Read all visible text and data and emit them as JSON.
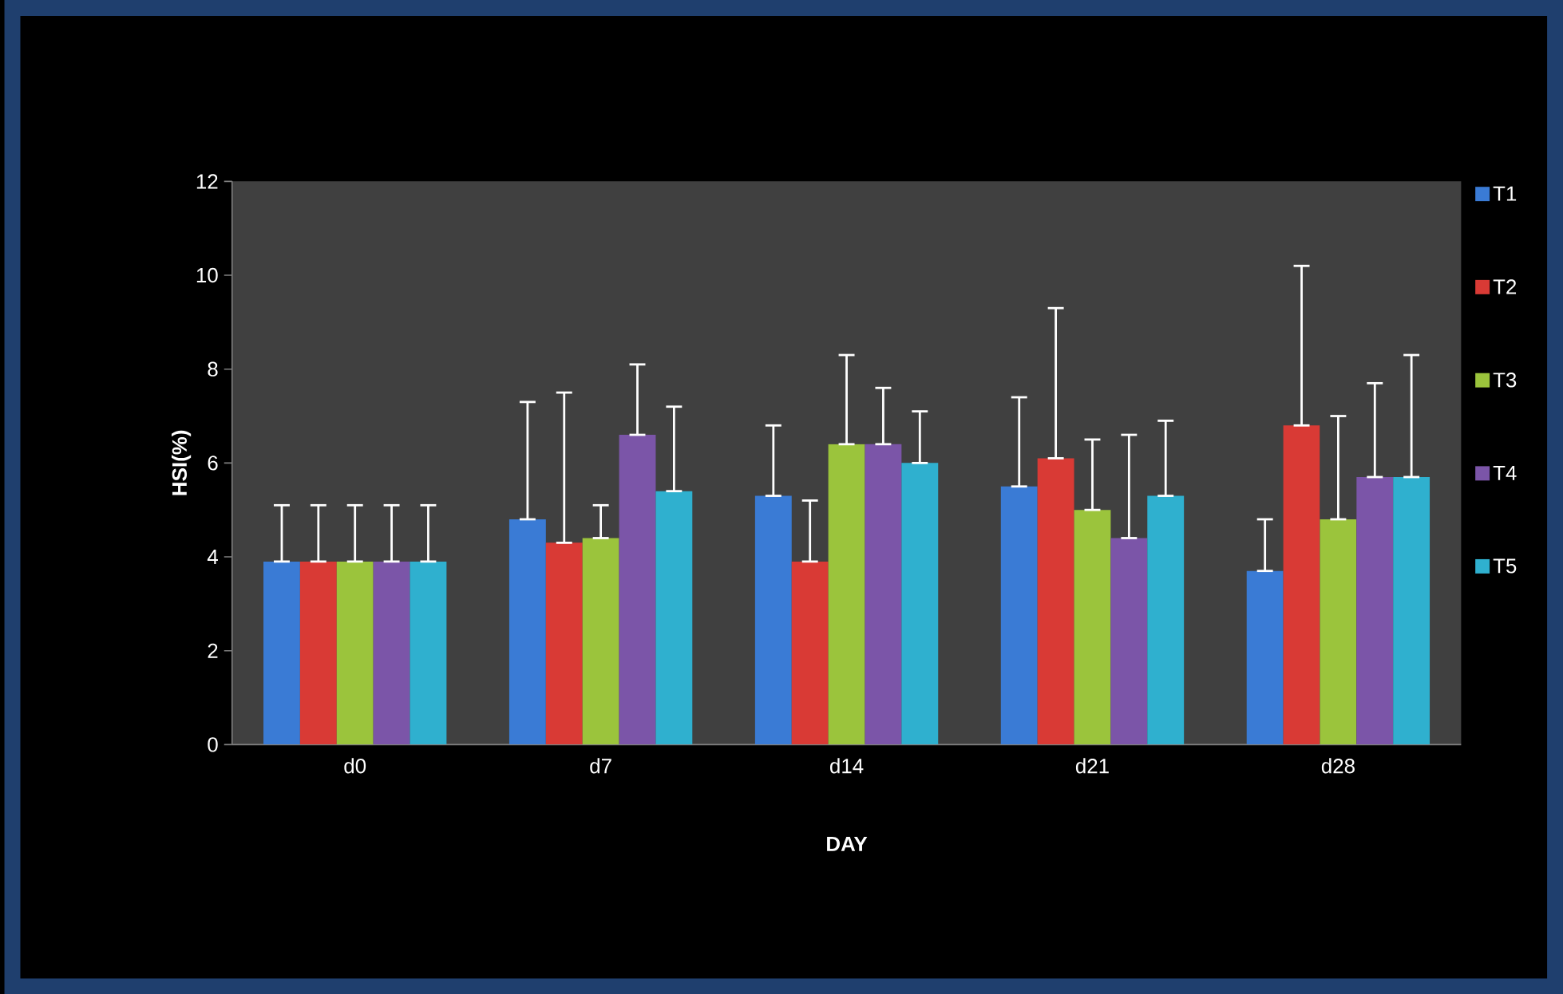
{
  "chart_data": {
    "type": "bar",
    "xlabel": "DAY",
    "ylabel": "HSI(%)",
    "categories": [
      "d0",
      "d7",
      "d14",
      "d21",
      "d28"
    ],
    "series": [
      {
        "name": "T1",
        "color": "#3a7bd5",
        "values": [
          3.9,
          4.8,
          5.3,
          5.5,
          3.7
        ],
        "errors": [
          [
            3.9,
            5.1
          ],
          [
            4.8,
            7.3
          ],
          [
            5.3,
            6.8
          ],
          [
            5.5,
            7.4
          ],
          [
            3.7,
            4.8
          ]
        ]
      },
      {
        "name": "T2",
        "color": "#d93a35",
        "values": [
          3.9,
          4.3,
          3.9,
          6.1,
          6.8
        ],
        "errors": [
          [
            3.9,
            5.1
          ],
          [
            4.3,
            7.5
          ],
          [
            3.9,
            5.2
          ],
          [
            6.1,
            9.3
          ],
          [
            6.8,
            10.2
          ]
        ]
      },
      {
        "name": "T3",
        "color": "#9bc43c",
        "values": [
          3.9,
          4.4,
          6.4,
          5.0,
          4.8
        ],
        "errors": [
          [
            3.9,
            5.1
          ],
          [
            4.4,
            5.1
          ],
          [
            6.4,
            8.3
          ],
          [
            5.0,
            6.5
          ],
          [
            4.8,
            7.0
          ]
        ]
      },
      {
        "name": "T4",
        "color": "#7b55a8",
        "values": [
          3.9,
          6.6,
          6.4,
          4.4,
          5.7
        ],
        "errors": [
          [
            3.9,
            5.1
          ],
          [
            6.6,
            8.1
          ],
          [
            6.4,
            7.6
          ],
          [
            4.4,
            6.6
          ],
          [
            5.7,
            7.7
          ]
        ]
      },
      {
        "name": "T5",
        "color": "#2fb0cf",
        "values": [
          3.9,
          5.4,
          6.0,
          5.3,
          5.7
        ],
        "errors": [
          [
            3.9,
            5.1
          ],
          [
            5.4,
            7.2
          ],
          [
            6.0,
            7.1
          ],
          [
            5.3,
            6.9
          ],
          [
            5.7,
            8.3
          ]
        ]
      }
    ],
    "ylim": [
      0,
      12
    ],
    "yticks": [
      0,
      2,
      4,
      6,
      8,
      10,
      12
    ],
    "grid": false,
    "legend": "right"
  }
}
